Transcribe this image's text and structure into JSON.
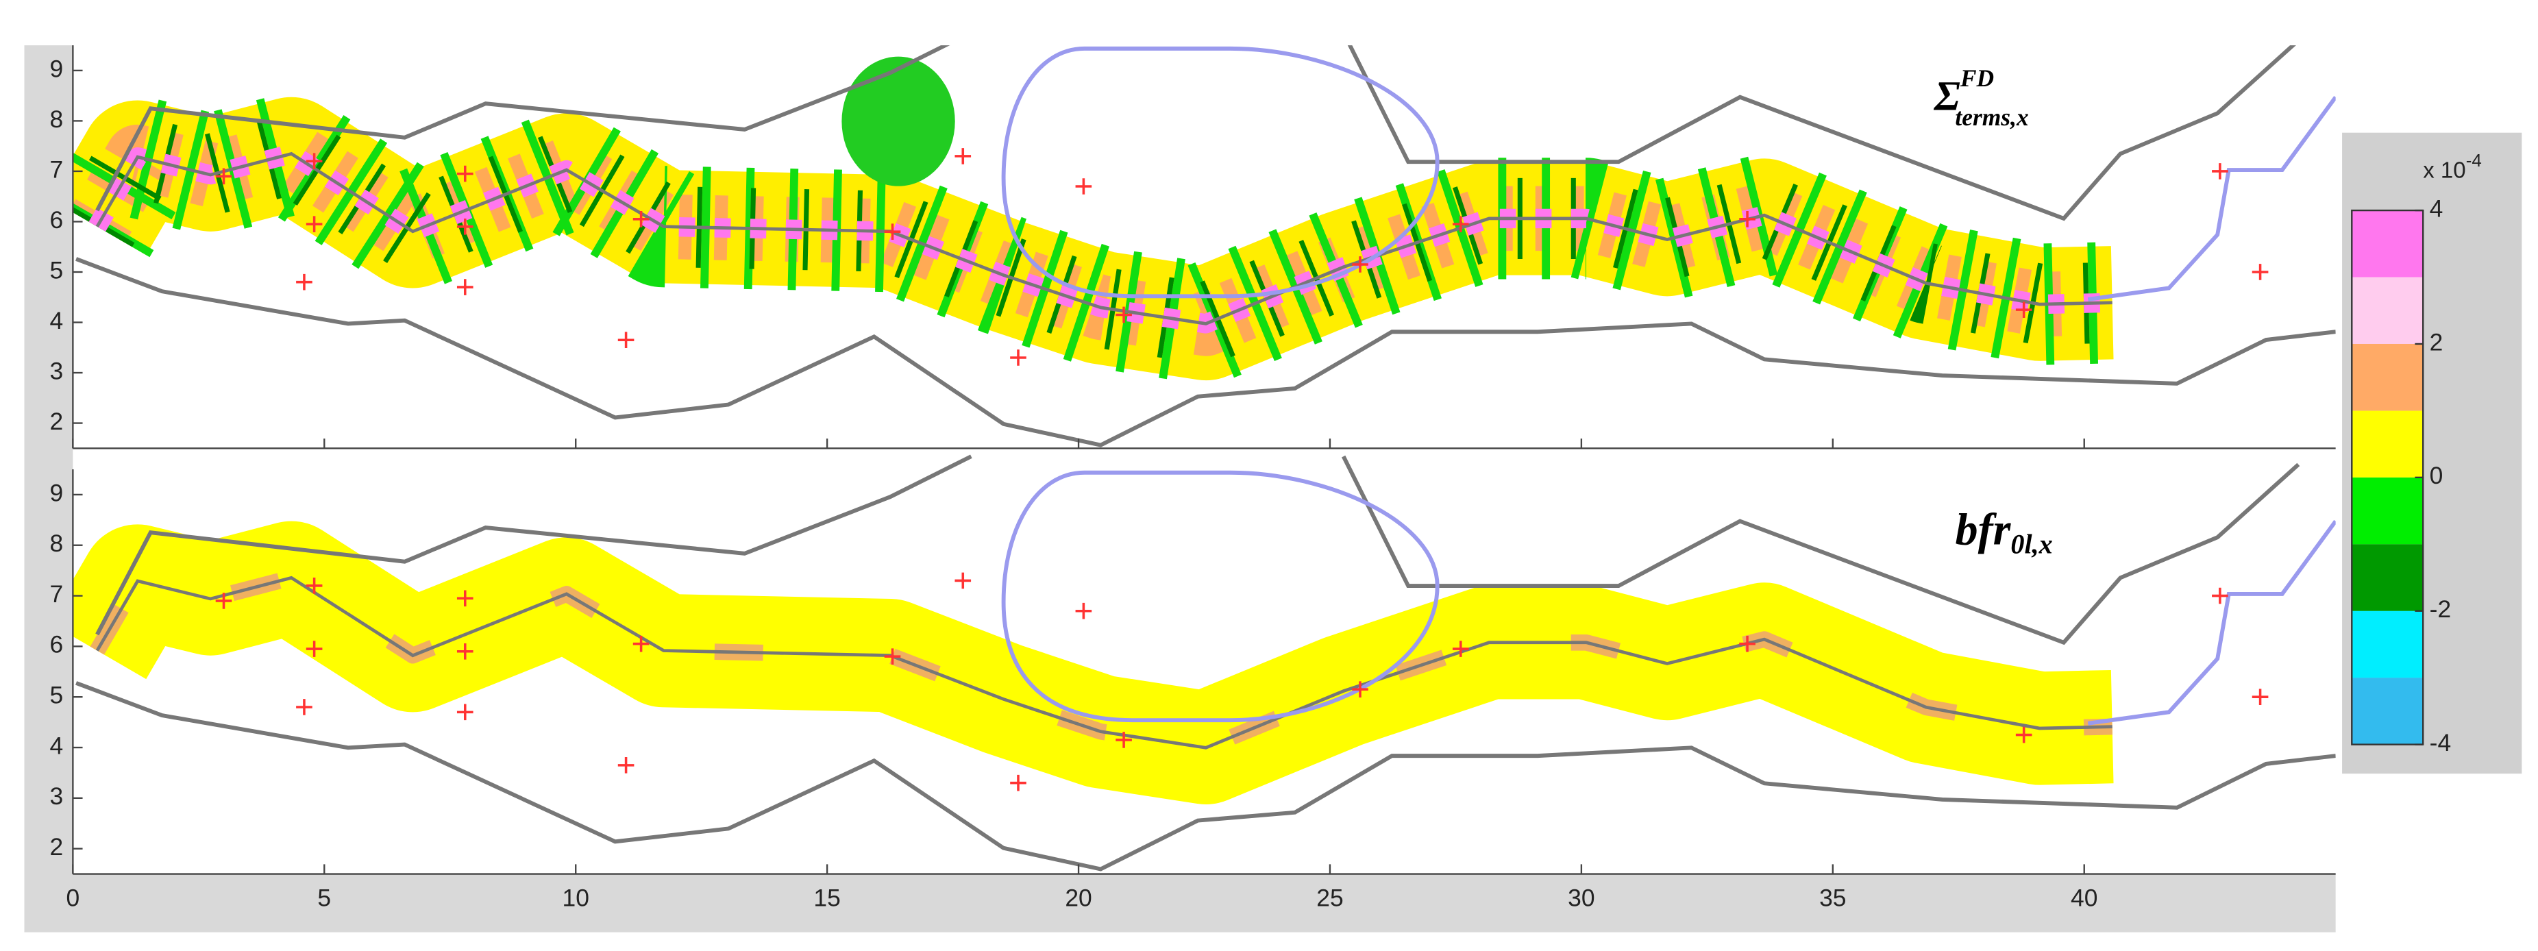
{
  "chart_data": {
    "type": "scatter",
    "xlim": [
      0,
      45
    ],
    "xticks": [
      0,
      5,
      10,
      15,
      20,
      25,
      30,
      35,
      40
    ],
    "ylim": [
      1.5,
      9.5
    ],
    "yticks": [
      2,
      3,
      4,
      5,
      6,
      7,
      8,
      9
    ],
    "panels": [
      {
        "label": {
          "base": "Σ",
          "sup": "FD",
          "sub": "terms,x"
        }
      },
      {
        "label": {
          "base": "bfr",
          "sub": "0l,x"
        }
      }
    ],
    "markers": {
      "color": "#ff3333",
      "x": [
        3,
        4.8,
        4.8,
        4.6,
        7.8,
        7.8,
        7.8,
        11,
        11.3,
        16.3,
        17.7,
        18.8,
        20.1,
        20.9,
        25.6,
        27.6,
        33.3,
        38.8,
        42.7,
        43.5
      ],
      "y": [
        6.9,
        7.2,
        5.95,
        4.8,
        6.95,
        5.9,
        4.7,
        3.65,
        6.05,
        5.8,
        7.3,
        3.3,
        6.7,
        4.15,
        5.15,
        5.95,
        6.05,
        4.25,
        7.0,
        5.0
      ]
    },
    "colorbar": {
      "lim": [
        -4,
        4
      ],
      "ticks": [
        -4,
        -2,
        0,
        2,
        4
      ],
      "colors": [
        "#33bbee",
        "#00eeff",
        "#009900",
        "#00ee00",
        "#ffff00",
        "#ffaa66",
        "#ffccee",
        "#ff77ee"
      ],
      "multiplier": {
        "base": "x 10",
        "exponent": "-4"
      }
    }
  }
}
